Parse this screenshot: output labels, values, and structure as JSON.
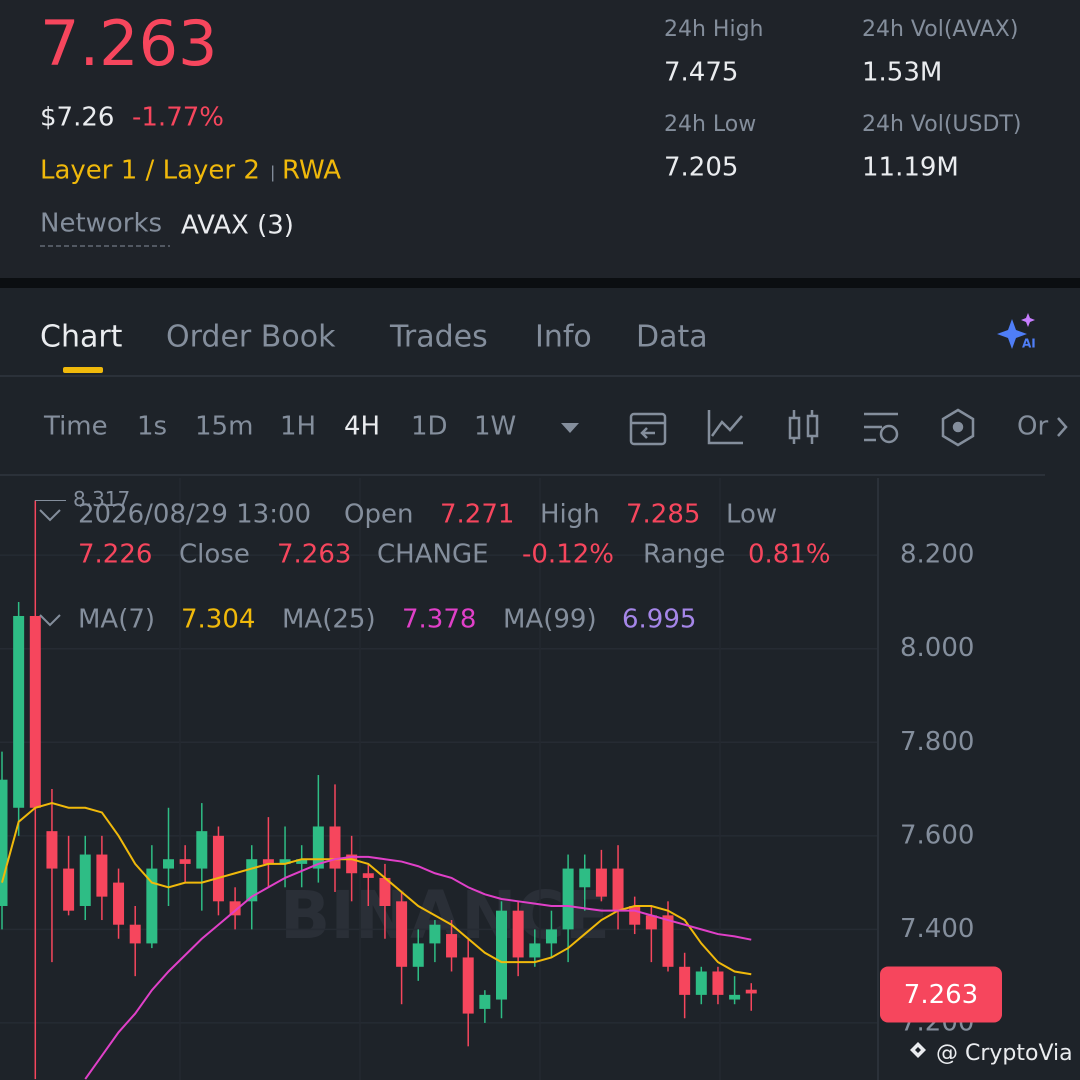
{
  "header": {
    "price": "7.263",
    "usd_price": "$7.26",
    "change": "-1.77%",
    "tags": [
      "Layer 1 / Layer 2",
      "RWA"
    ],
    "networks_label": "Networks",
    "networks_value": "AVAX (3)",
    "stats": [
      {
        "label": "24h High",
        "value": "7.475"
      },
      {
        "label": "24h Vol(AVAX)",
        "value": "1.53M"
      },
      {
        "label": "24h Low",
        "value": "7.205"
      },
      {
        "label": "24h Vol(USDT)",
        "value": "11.19M"
      }
    ]
  },
  "tabs": [
    "Chart",
    "Order Book",
    "Trades",
    "Info",
    "Data"
  ],
  "intervals": [
    "Time",
    "1s",
    "15m",
    "1H",
    "4H",
    "1D",
    "1W"
  ],
  "more": "Or",
  "info": {
    "datetime": "2026/08/29 13:00",
    "open_label": "Open",
    "high_label": "High",
    "low_label": "Low",
    "close_label": "Close",
    "change_label": "CHANGE",
    "change": "-0.12%",
    "range_label": "Range",
    "range": "0.81%",
    "ma99": {
      "name": "MA(99)",
      "value": "6.995",
      "color": "#a586e8"
    }
  },
  "chart_data": {
    "type": "candlestick",
    "ylim": [
      7.078,
      8.365
    ],
    "yticks": [
      {
        "value": 7.2,
        "label": "7.200"
      },
      {
        "value": 7.4,
        "label": "7.400"
      },
      {
        "value": 7.6,
        "label": "7.600"
      },
      {
        "value": 7.8,
        "label": "7.800"
      },
      {
        "value": 8.0,
        "label": "8.000"
      },
      {
        "value": 8.2,
        "label": "8.200"
      }
    ],
    "up_color": "#2ebd85",
    "down_color": "#f6465d",
    "watermark": "BINANCE",
    "candles": [
      {
        "open": 7.45,
        "high": 7.78,
        "low": 7.4,
        "close": 7.72
      },
      {
        "open": 7.66,
        "high": 8.1,
        "low": 7.6,
        "close": 8.07
      },
      {
        "open": 8.07,
        "high": 8.317,
        "low": 7.08,
        "close": 7.66
      },
      {
        "open": 7.61,
        "high": 7.7,
        "low": 7.33,
        "close": 7.53
      },
      {
        "open": 7.53,
        "high": 7.6,
        "low": 7.43,
        "close": 7.44
      },
      {
        "open": 7.45,
        "high": 7.6,
        "low": 7.42,
        "close": 7.56
      },
      {
        "open": 7.56,
        "high": 7.6,
        "low": 7.42,
        "close": 7.47
      },
      {
        "open": 7.5,
        "high": 7.53,
        "low": 7.38,
        "close": 7.41
      },
      {
        "open": 7.41,
        "high": 7.45,
        "low": 7.3,
        "close": 7.37
      },
      {
        "open": 7.37,
        "high": 7.58,
        "low": 7.36,
        "close": 7.53
      },
      {
        "open": 7.53,
        "high": 7.66,
        "low": 7.45,
        "close": 7.55
      },
      {
        "open": 7.55,
        "high": 7.58,
        "low": 7.5,
        "close": 7.54
      },
      {
        "open": 7.53,
        "high": 7.67,
        "low": 7.44,
        "close": 7.61
      },
      {
        "open": 7.6,
        "high": 7.62,
        "low": 7.43,
        "close": 7.46
      },
      {
        "open": 7.46,
        "high": 7.49,
        "low": 7.4,
        "close": 7.43
      },
      {
        "open": 7.46,
        "high": 7.58,
        "low": 7.4,
        "close": 7.55
      },
      {
        "open": 7.55,
        "high": 7.64,
        "low": 7.49,
        "close": 7.54
      },
      {
        "open": 7.54,
        "high": 7.62,
        "low": 7.49,
        "close": 7.55
      },
      {
        "open": 7.54,
        "high": 7.58,
        "low": 7.49,
        "close": 7.55
      },
      {
        "open": 7.53,
        "high": 7.73,
        "low": 7.5,
        "close": 7.62
      },
      {
        "open": 7.62,
        "high": 7.71,
        "low": 7.48,
        "close": 7.53
      },
      {
        "open": 7.56,
        "high": 7.6,
        "low": 7.46,
        "close": 7.52
      },
      {
        "open": 7.52,
        "high": 7.54,
        "low": 7.45,
        "close": 7.51
      },
      {
        "open": 7.51,
        "high": 7.54,
        "low": 7.38,
        "close": 7.45
      },
      {
        "open": 7.46,
        "high": 7.48,
        "low": 7.24,
        "close": 7.32
      },
      {
        "open": 7.32,
        "high": 7.4,
        "low": 7.29,
        "close": 7.37
      },
      {
        "open": 7.37,
        "high": 7.42,
        "low": 7.33,
        "close": 7.41
      },
      {
        "open": 7.39,
        "high": 7.42,
        "low": 7.31,
        "close": 7.34
      },
      {
        "open": 7.34,
        "high": 7.38,
        "low": 7.15,
        "close": 7.22
      },
      {
        "open": 7.23,
        "high": 7.27,
        "low": 7.2,
        "close": 7.26
      },
      {
        "open": 7.25,
        "high": 7.46,
        "low": 7.21,
        "close": 7.44
      },
      {
        "open": 7.44,
        "high": 7.46,
        "low": 7.3,
        "close": 7.34
      },
      {
        "open": 7.34,
        "high": 7.4,
        "low": 7.32,
        "close": 7.37
      },
      {
        "open": 7.37,
        "high": 7.44,
        "low": 7.34,
        "close": 7.4
      },
      {
        "open": 7.4,
        "high": 7.56,
        "low": 7.33,
        "close": 7.53
      },
      {
        "open": 7.49,
        "high": 7.56,
        "low": 7.44,
        "close": 7.53
      },
      {
        "open": 7.53,
        "high": 7.57,
        "low": 7.46,
        "close": 7.47
      },
      {
        "open": 7.53,
        "high": 7.58,
        "low": 7.4,
        "close": 7.44
      },
      {
        "open": 7.45,
        "high": 7.47,
        "low": 7.39,
        "close": 7.41
      },
      {
        "open": 7.43,
        "high": 7.45,
        "low": 7.33,
        "close": 7.4
      },
      {
        "open": 7.43,
        "high": 7.46,
        "low": 7.31,
        "close": 7.32
      },
      {
        "open": 7.32,
        "high": 7.35,
        "low": 7.21,
        "close": 7.26
      },
      {
        "open": 7.26,
        "high": 7.32,
        "low": 7.24,
        "close": 7.31
      },
      {
        "open": 7.31,
        "high": 7.32,
        "low": 7.24,
        "close": 7.26
      },
      {
        "open": 7.25,
        "high": 7.3,
        "low": 7.24,
        "close": 7.26
      },
      {
        "open": 7.271,
        "high": 7.285,
        "low": 7.226,
        "close": 7.263
      }
    ],
    "series": [
      {
        "name": "MA(7)",
        "color": "#f0b90b",
        "values": [
          7.5,
          7.63,
          7.66,
          7.67,
          7.66,
          7.66,
          7.65,
          7.6,
          7.54,
          7.5,
          7.49,
          7.5,
          7.5,
          7.51,
          7.52,
          7.53,
          7.54,
          7.54,
          7.55,
          7.55,
          7.55,
          7.55,
          7.54,
          7.51,
          7.48,
          7.45,
          7.43,
          7.41,
          7.38,
          7.35,
          7.33,
          7.33,
          7.33,
          7.34,
          7.36,
          7.39,
          7.42,
          7.44,
          7.45,
          7.45,
          7.44,
          7.42,
          7.37,
          7.33,
          7.31,
          7.304
        ]
      },
      {
        "name": "MA(25)",
        "color": "#e040c8",
        "values": [
          null,
          null,
          null,
          null,
          null,
          7.08,
          7.13,
          7.18,
          7.22,
          7.27,
          7.31,
          7.345,
          7.38,
          7.41,
          7.44,
          7.47,
          7.49,
          7.51,
          7.525,
          7.54,
          7.55,
          7.555,
          7.555,
          7.55,
          7.545,
          7.535,
          7.52,
          7.51,
          7.49,
          7.475,
          7.465,
          7.46,
          7.455,
          7.45,
          7.45,
          7.445,
          7.44,
          7.44,
          7.44,
          7.43,
          7.42,
          7.41,
          7.4,
          7.39,
          7.385,
          7.378
        ]
      }
    ]
  },
  "footer": {
    "credit": "@ CryptoVia"
  }
}
